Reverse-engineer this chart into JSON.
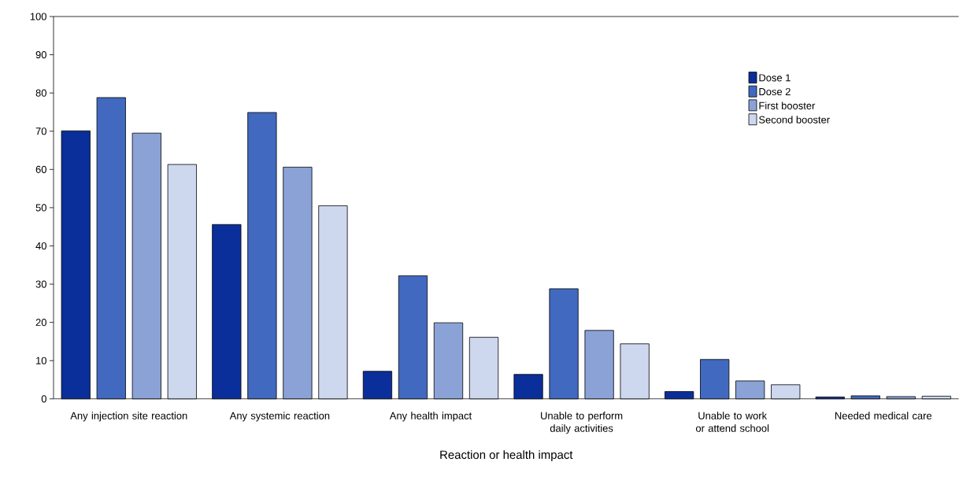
{
  "chart_data": {
    "type": "bar",
    "xlabel": "Reaction or health impact",
    "categories": [
      "Any injection site reaction",
      "Any systemic reaction",
      "Any health impact",
      "Unable to perform daily activities",
      "Unable to work or attend school",
      "Needed medical care"
    ],
    "series": [
      {
        "name": "Dose 1",
        "color": "#0a2f9b",
        "values": [
          70.1,
          45.6,
          7.2,
          6.4,
          1.9,
          0.5
        ]
      },
      {
        "name": "Dose 2",
        "color": "#4169bf",
        "values": [
          78.8,
          74.9,
          32.2,
          28.8,
          10.3,
          0.8
        ]
      },
      {
        "name": "First booster",
        "color": "#8aa2d6",
        "values": [
          69.5,
          60.6,
          19.9,
          17.9,
          4.7,
          0.6
        ]
      },
      {
        "name": "Second booster",
        "color": "#cdd8ef",
        "values": [
          61.3,
          50.5,
          16.1,
          14.4,
          3.7,
          0.7
        ]
      }
    ],
    "ylim": [
      0,
      100
    ],
    "yticks": [
      0,
      10,
      20,
      30,
      40,
      50,
      60,
      70,
      80,
      90,
      100
    ],
    "grid": false,
    "legend": "top right"
  }
}
